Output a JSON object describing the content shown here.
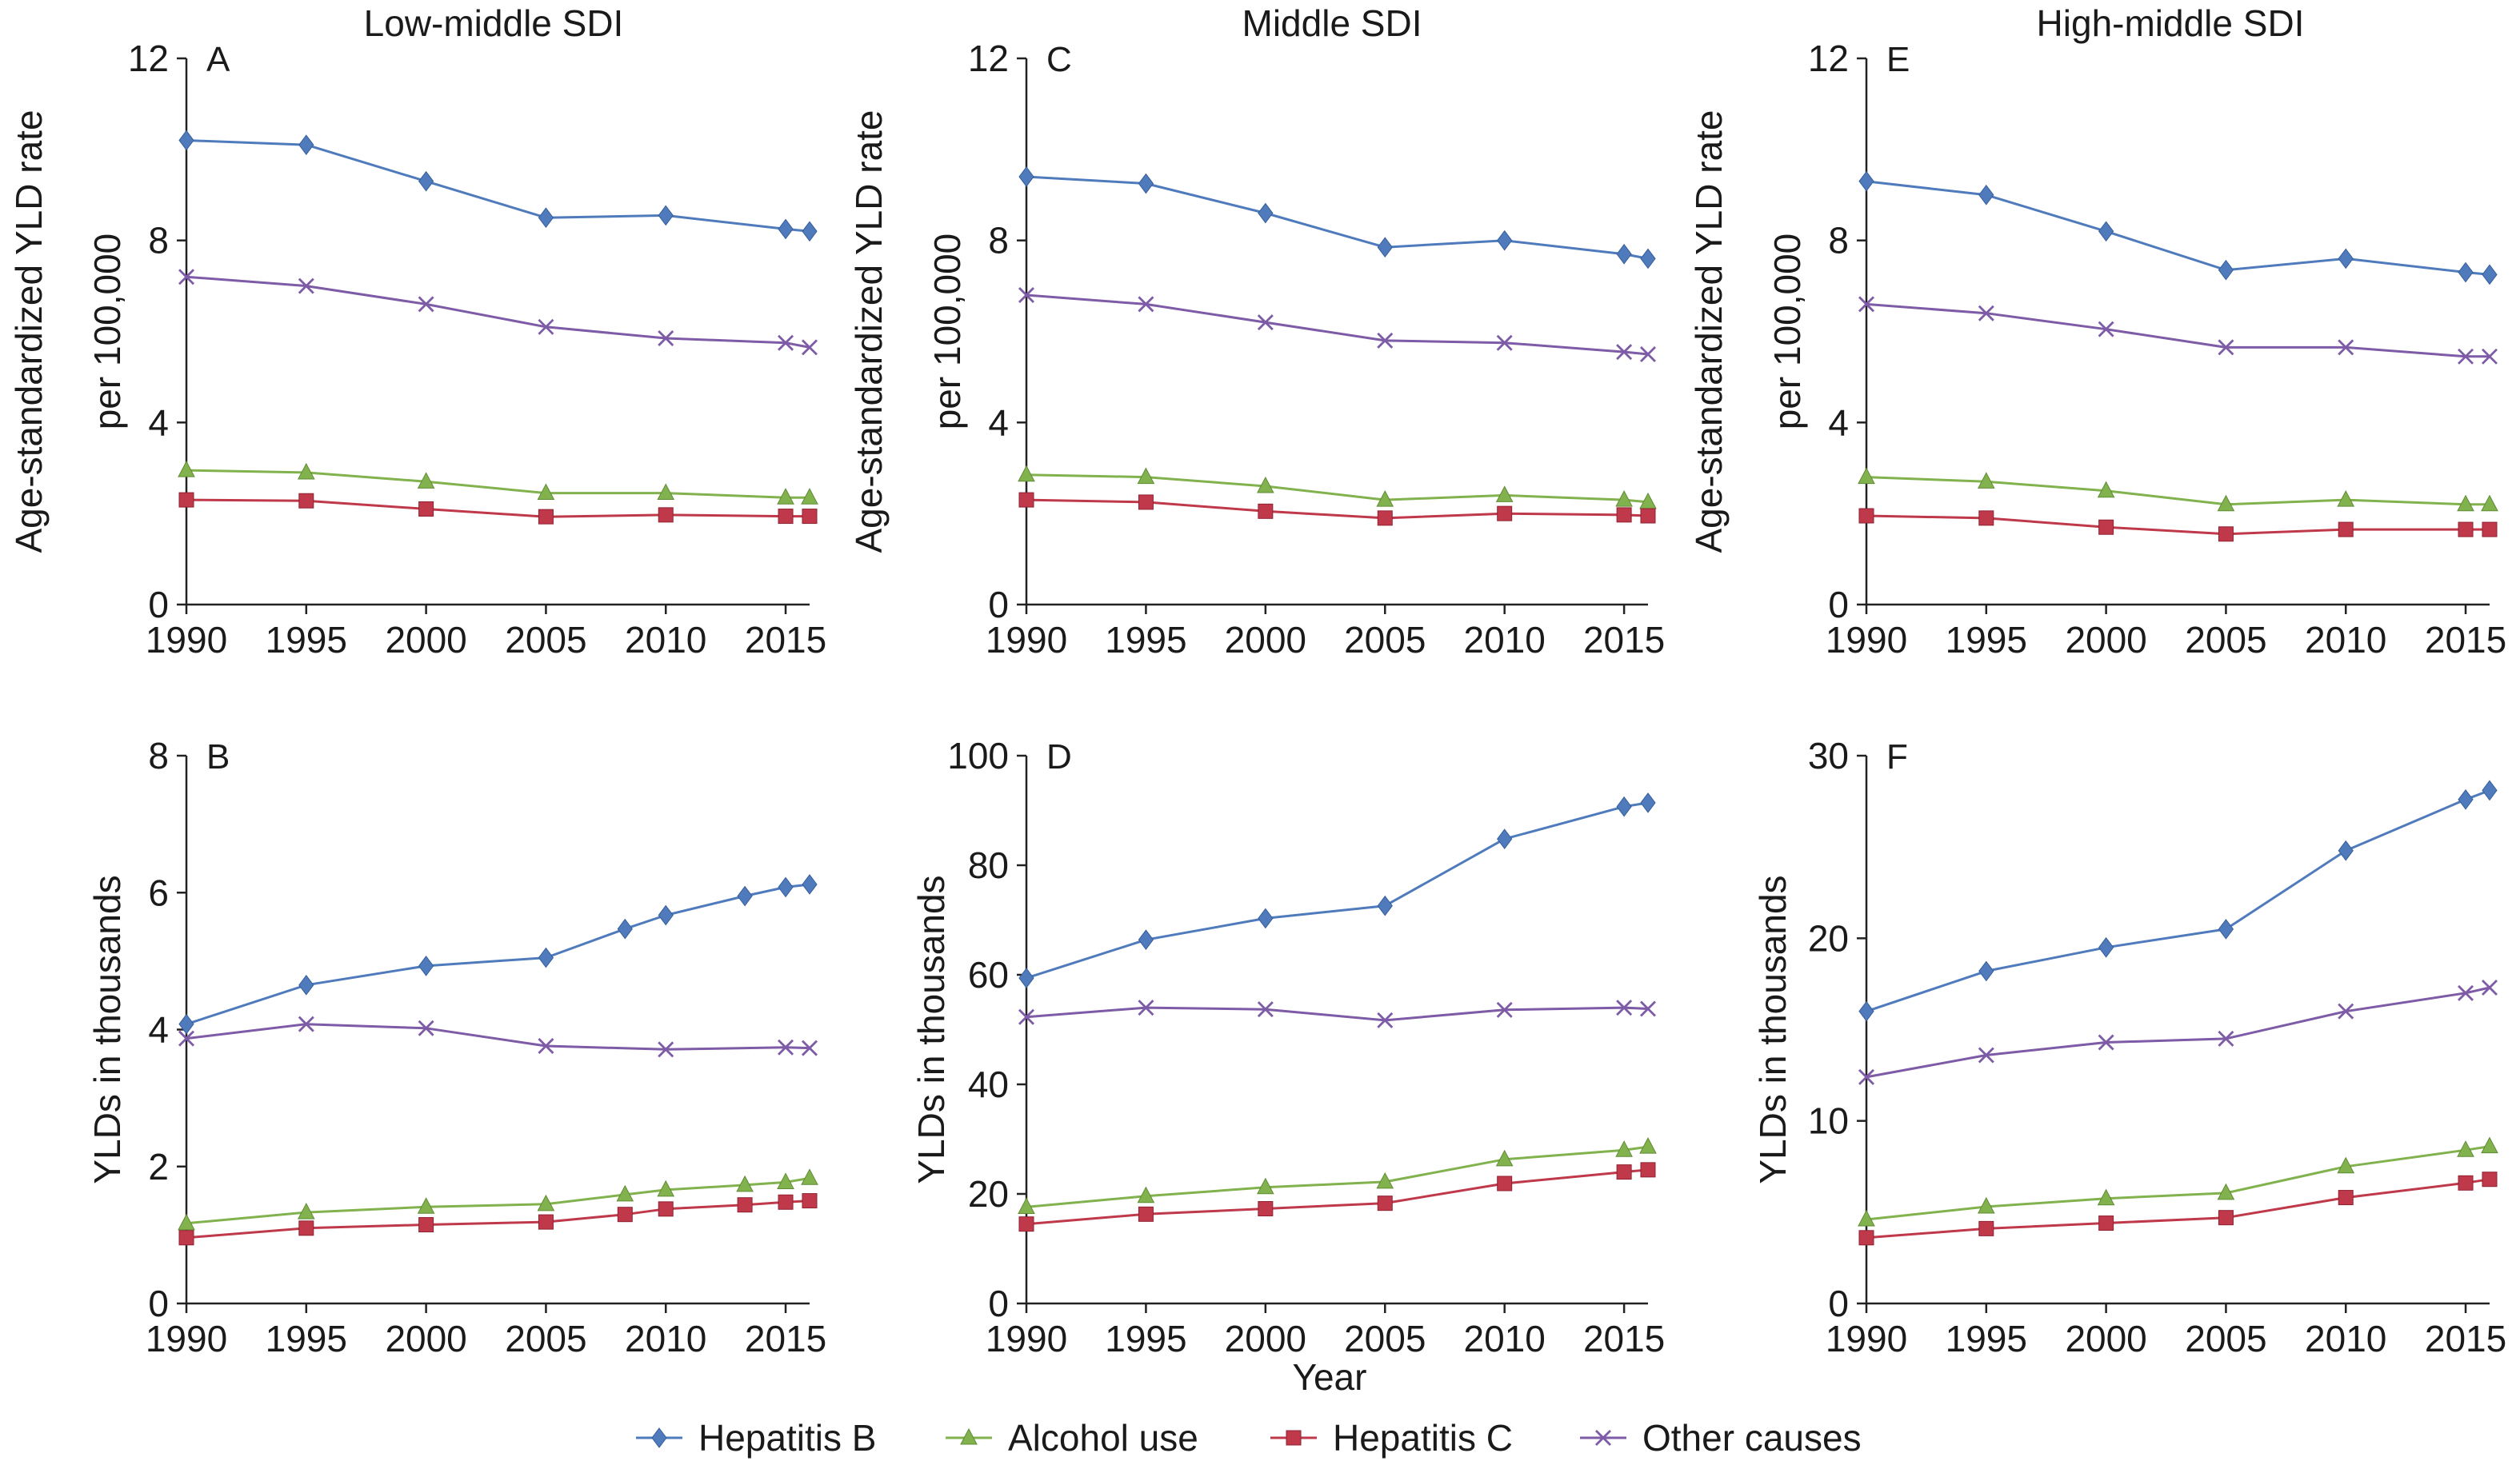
{
  "figure": {
    "xlabel": "Year",
    "legend_position": "bottom",
    "series_styles": [
      {
        "name": "Hepatitis B",
        "color": "#4f7bbd",
        "marker": "diamond-icon"
      },
      {
        "name": "Alcohol use",
        "color": "#82b24e",
        "marker": "triangle-icon"
      },
      {
        "name": "Hepatitis C",
        "color": "#c0394b",
        "marker": "square-icon"
      },
      {
        "name": "Other causes",
        "color": "#7d5ba6",
        "marker": "x-icon"
      }
    ]
  },
  "chart_data": [
    {
      "type": "line",
      "panel": "A",
      "title": "Low-middle SDI",
      "ylabel": [
        "Age-standardized YLD rate",
        "per 100,000"
      ],
      "xlim": [
        1990,
        2016
      ],
      "xticks": [
        1990,
        1995,
        2000,
        2005,
        2010,
        2015
      ],
      "ylim": [
        0,
        12
      ],
      "yticks": [
        0,
        4,
        8,
        12
      ],
      "grid": false,
      "series": [
        {
          "name": "Hepatitis B",
          "points": [
            [
              1990,
              10.2
            ],
            [
              1995,
              10.1
            ],
            [
              2000,
              9.3
            ],
            [
              2005,
              8.5
            ],
            [
              2010,
              8.55
            ],
            [
              2015,
              8.25
            ],
            [
              2016,
              8.2
            ]
          ]
        },
        {
          "name": "Alcohol use",
          "points": [
            [
              1990,
              2.95
            ],
            [
              1995,
              2.9
            ],
            [
              2000,
              2.7
            ],
            [
              2005,
              2.45
            ],
            [
              2010,
              2.45
            ],
            [
              2015,
              2.35
            ],
            [
              2016,
              2.35
            ]
          ]
        },
        {
          "name": "Hepatitis C",
          "points": [
            [
              1990,
              2.3
            ],
            [
              1995,
              2.28
            ],
            [
              2000,
              2.1
            ],
            [
              2005,
              1.93
            ],
            [
              2010,
              1.97
            ],
            [
              2015,
              1.94
            ],
            [
              2016,
              1.94
            ]
          ]
        },
        {
          "name": "Other causes",
          "points": [
            [
              1990,
              7.2
            ],
            [
              1995,
              7.0
            ],
            [
              2000,
              6.6
            ],
            [
              2005,
              6.1
            ],
            [
              2010,
              5.85
            ],
            [
              2015,
              5.75
            ],
            [
              2016,
              5.65
            ]
          ]
        }
      ]
    },
    {
      "type": "line",
      "panel": "B",
      "title": "",
      "ylabel": [
        "YLDs in thousands"
      ],
      "xlim": [
        1990,
        2016
      ],
      "xticks": [
        1990,
        1995,
        2000,
        2005,
        2010,
        2015
      ],
      "ylim": [
        0,
        8
      ],
      "yticks": [
        0,
        2,
        4,
        6,
        8
      ],
      "grid": false,
      "series": [
        {
          "name": "Hepatitis B",
          "points": [
            [
              1990,
              4.08
            ],
            [
              1995,
              4.65
            ],
            [
              2000,
              4.93
            ],
            [
              2005,
              5.05
            ],
            [
              2008.3,
              5.47
            ],
            [
              2010,
              5.67
            ],
            [
              2013.3,
              5.95
            ],
            [
              2015,
              6.08
            ],
            [
              2016,
              6.12
            ]
          ]
        },
        {
          "name": "Alcohol use",
          "points": [
            [
              1990,
              1.17
            ],
            [
              1995,
              1.33
            ],
            [
              2000,
              1.41
            ],
            [
              2005,
              1.45
            ],
            [
              2008.3,
              1.59
            ],
            [
              2010,
              1.66
            ],
            [
              2013.3,
              1.73
            ],
            [
              2015,
              1.77
            ],
            [
              2016,
              1.83
            ]
          ]
        },
        {
          "name": "Hepatitis C",
          "points": [
            [
              1990,
              0.96
            ],
            [
              1995,
              1.1
            ],
            [
              2000,
              1.15
            ],
            [
              2005,
              1.19
            ],
            [
              2008.3,
              1.3
            ],
            [
              2010,
              1.38
            ],
            [
              2013.3,
              1.44
            ],
            [
              2015,
              1.48
            ],
            [
              2016,
              1.5
            ]
          ]
        },
        {
          "name": "Other causes",
          "points": [
            [
              1990,
              3.87
            ],
            [
              1995,
              4.08
            ],
            [
              2000,
              4.02
            ],
            [
              2005,
              3.76
            ],
            [
              2010,
              3.71
            ],
            [
              2015,
              3.74
            ],
            [
              2016,
              3.73
            ]
          ]
        }
      ]
    },
    {
      "type": "line",
      "panel": "C",
      "title": "Middle SDI",
      "ylabel": [
        "Age-standardized YLD rate",
        "per 100,000"
      ],
      "xlim": [
        1990,
        2016
      ],
      "xticks": [
        1990,
        1995,
        2000,
        2005,
        2010,
        2015
      ],
      "ylim": [
        0,
        12
      ],
      "yticks": [
        0,
        4,
        8,
        12
      ],
      "grid": false,
      "series": [
        {
          "name": "Hepatitis B",
          "points": [
            [
              1990,
              9.4
            ],
            [
              1995,
              9.25
            ],
            [
              2000,
              8.6
            ],
            [
              2005,
              7.85
            ],
            [
              2010,
              8.0
            ],
            [
              2015,
              7.7
            ],
            [
              2016,
              7.6
            ]
          ]
        },
        {
          "name": "Alcohol use",
          "points": [
            [
              1990,
              2.85
            ],
            [
              1995,
              2.8
            ],
            [
              2000,
              2.6
            ],
            [
              2005,
              2.3
            ],
            [
              2010,
              2.4
            ],
            [
              2015,
              2.3
            ],
            [
              2016,
              2.25
            ]
          ]
        },
        {
          "name": "Hepatitis C",
          "points": [
            [
              1990,
              2.3
            ],
            [
              1995,
              2.25
            ],
            [
              2000,
              2.05
            ],
            [
              2005,
              1.9
            ],
            [
              2010,
              2.0
            ],
            [
              2015,
              1.97
            ],
            [
              2016,
              1.95
            ]
          ]
        },
        {
          "name": "Other causes",
          "points": [
            [
              1990,
              6.8
            ],
            [
              1995,
              6.6
            ],
            [
              2000,
              6.2
            ],
            [
              2005,
              5.8
            ],
            [
              2010,
              5.75
            ],
            [
              2015,
              5.55
            ],
            [
              2016,
              5.5
            ]
          ]
        }
      ]
    },
    {
      "type": "line",
      "panel": "D",
      "title": "",
      "ylabel": [
        "YLDs in thousands"
      ],
      "xlim": [
        1990,
        2016
      ],
      "xticks": [
        1990,
        1995,
        2000,
        2005,
        2010,
        2015
      ],
      "ylim": [
        0,
        100
      ],
      "yticks": [
        0,
        20,
        40,
        60,
        80,
        100
      ],
      "grid": false,
      "series": [
        {
          "name": "Hepatitis B",
          "points": [
            [
              1990,
              59.4
            ],
            [
              1995,
              66.4
            ],
            [
              2000,
              70.3
            ],
            [
              2005,
              72.6
            ],
            [
              2010,
              84.8
            ],
            [
              2015,
              90.7
            ],
            [
              2016,
              91.4
            ]
          ]
        },
        {
          "name": "Alcohol use",
          "points": [
            [
              1990,
              17.6
            ],
            [
              1995,
              19.6
            ],
            [
              2000,
              21.2
            ],
            [
              2005,
              22.2
            ],
            [
              2010,
              26.3
            ],
            [
              2015,
              28.0
            ],
            [
              2016,
              28.6
            ]
          ]
        },
        {
          "name": "Hepatitis C",
          "points": [
            [
              1990,
              14.5
            ],
            [
              1995,
              16.3
            ],
            [
              2000,
              17.3
            ],
            [
              2005,
              18.3
            ],
            [
              2010,
              21.9
            ],
            [
              2015,
              24.0
            ],
            [
              2016,
              24.4
            ]
          ]
        },
        {
          "name": "Other causes",
          "points": [
            [
              1990,
              52.3
            ],
            [
              1995,
              54.0
            ],
            [
              2000,
              53.7
            ],
            [
              2005,
              51.7
            ],
            [
              2010,
              53.6
            ],
            [
              2015,
              54.0
            ],
            [
              2016,
              53.8
            ]
          ]
        }
      ]
    },
    {
      "type": "line",
      "panel": "E",
      "title": "High-middle SDI",
      "ylabel": [
        "Age-standardized YLD rate",
        "per 100,000"
      ],
      "xlim": [
        1990,
        2016
      ],
      "xticks": [
        1990,
        1995,
        2000,
        2005,
        2010,
        2015
      ],
      "ylim": [
        0,
        12
      ],
      "yticks": [
        0,
        4,
        8,
        12
      ],
      "grid": false,
      "series": [
        {
          "name": "Hepatitis B",
          "points": [
            [
              1990,
              9.3
            ],
            [
              1995,
              9.0
            ],
            [
              2000,
              8.2
            ],
            [
              2005,
              7.35
            ],
            [
              2010,
              7.6
            ],
            [
              2015,
              7.3
            ],
            [
              2016,
              7.25
            ]
          ]
        },
        {
          "name": "Alcohol use",
          "points": [
            [
              1990,
              2.8
            ],
            [
              1995,
              2.7
            ],
            [
              2000,
              2.5
            ],
            [
              2005,
              2.2
            ],
            [
              2010,
              2.3
            ],
            [
              2015,
              2.2
            ],
            [
              2016,
              2.2
            ]
          ]
        },
        {
          "name": "Hepatitis C",
          "points": [
            [
              1990,
              1.95
            ],
            [
              1995,
              1.9
            ],
            [
              2000,
              1.7
            ],
            [
              2005,
              1.55
            ],
            [
              2010,
              1.65
            ],
            [
              2015,
              1.65
            ],
            [
              2016,
              1.65
            ]
          ]
        },
        {
          "name": "Other causes",
          "points": [
            [
              1990,
              6.6
            ],
            [
              1995,
              6.4
            ],
            [
              2000,
              6.05
            ],
            [
              2005,
              5.65
            ],
            [
              2010,
              5.65
            ],
            [
              2015,
              5.45
            ],
            [
              2016,
              5.45
            ]
          ]
        }
      ]
    },
    {
      "type": "line",
      "panel": "F",
      "title": "",
      "ylabel": [
        "YLDs in thousands"
      ],
      "xlim": [
        1990,
        2016
      ],
      "xticks": [
        1990,
        1995,
        2000,
        2005,
        2010,
        2015
      ],
      "ylim": [
        0,
        30
      ],
      "yticks": [
        0,
        10,
        20,
        30
      ],
      "grid": false,
      "series": [
        {
          "name": "Hepatitis B",
          "points": [
            [
              1990,
              16.0
            ],
            [
              1995,
              18.2
            ],
            [
              2000,
              19.5
            ],
            [
              2005,
              20.5
            ],
            [
              2010,
              24.8
            ],
            [
              2015,
              27.6
            ],
            [
              2016,
              28.1
            ]
          ]
        },
        {
          "name": "Alcohol use",
          "points": [
            [
              1990,
              4.6
            ],
            [
              1995,
              5.3
            ],
            [
              2000,
              5.75
            ],
            [
              2005,
              6.05
            ],
            [
              2010,
              7.5
            ],
            [
              2015,
              8.4
            ],
            [
              2016,
              8.6
            ]
          ]
        },
        {
          "name": "Hepatitis C",
          "points": [
            [
              1990,
              3.6
            ],
            [
              1995,
              4.1
            ],
            [
              2000,
              4.4
            ],
            [
              2005,
              4.7
            ],
            [
              2010,
              5.8
            ],
            [
              2015,
              6.6
            ],
            [
              2016,
              6.8
            ]
          ]
        },
        {
          "name": "Other causes",
          "points": [
            [
              1990,
              12.4
            ],
            [
              1995,
              13.6
            ],
            [
              2000,
              14.3
            ],
            [
              2005,
              14.5
            ],
            [
              2010,
              16.0
            ],
            [
              2015,
              17.0
            ],
            [
              2016,
              17.3
            ]
          ]
        }
      ]
    }
  ]
}
